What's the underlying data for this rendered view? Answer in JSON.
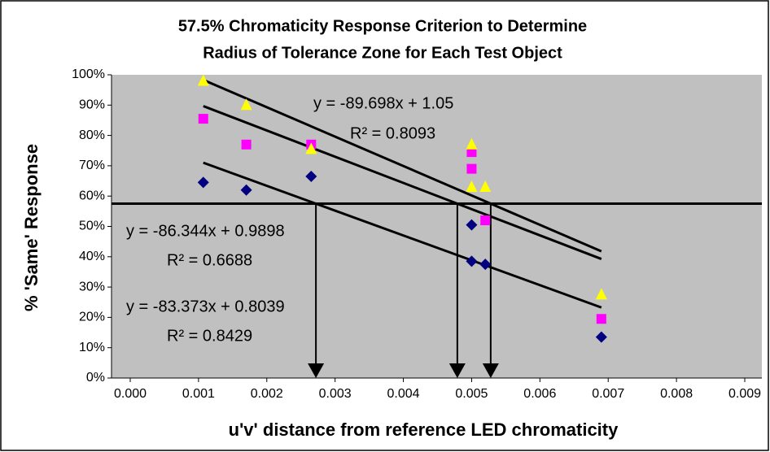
{
  "chart_data": {
    "type": "scatter",
    "title": "57.5% Chromaticity Response Criterion to Determine",
    "subtitle": "Radius of Tolerance Zone for Each Test Object",
    "x_label": "u'v' distance from reference LED chromaticity",
    "y_label": "% 'Same' Response",
    "xlim": [
      0,
      0.009
    ],
    "xticks": [
      {
        "value": 0,
        "label": "0.000"
      },
      {
        "value": 0.001,
        "label": "0.001"
      },
      {
        "value": 0.002,
        "label": "0.002"
      },
      {
        "value": 0.003,
        "label": "0.003"
      },
      {
        "value": 0.004,
        "label": "0.004"
      },
      {
        "value": 0.005,
        "label": "0.005"
      },
      {
        "value": 0.006,
        "label": "0.006"
      },
      {
        "value": 0.007,
        "label": "0.007"
      },
      {
        "value": 0.008,
        "label": "0.008"
      },
      {
        "value": 0.009,
        "label": "0.009"
      }
    ],
    "ylim": [
      0,
      100
    ],
    "yticks": [
      {
        "value": 0,
        "label": "0%"
      },
      {
        "value": 10,
        "label": "10%"
      },
      {
        "value": 20,
        "label": "20%"
      },
      {
        "value": 30,
        "label": "30%"
      },
      {
        "value": 40,
        "label": "40%"
      },
      {
        "value": 50,
        "label": "50%"
      },
      {
        "value": 60,
        "label": "60%"
      },
      {
        "value": 70,
        "label": "70%"
      },
      {
        "value": 80,
        "label": "80%"
      },
      {
        "value": 90,
        "label": "90%"
      },
      {
        "value": 100,
        "label": "100%"
      }
    ],
    "reference_line": 57.5,
    "series": [
      {
        "color": "#000080",
        "marker": "diamond",
        "x": [
          0.00107,
          0.0017,
          0.00265,
          0.005,
          0.005,
          0.0052,
          0.0069
        ],
        "values": [
          64.5,
          62,
          66.5,
          50.5,
          38.5,
          37.5,
          13.5
        ]
      },
      {
        "color": "#ff00ff",
        "marker": "square",
        "x": [
          0.00107,
          0.0017,
          0.00265,
          0.005,
          0.005,
          0.0052,
          0.0069
        ],
        "values": [
          85.5,
          77,
          77,
          74.5,
          69,
          52,
          19.5
        ]
      },
      {
        "color": "#ffff00",
        "marker": "triangle",
        "x": [
          0.00107,
          0.0017,
          0.00265,
          0.005,
          0.005,
          0.0052,
          0.0069
        ],
        "values": [
          98,
          90,
          75.5,
          77,
          63,
          63,
          27.5
        ]
      }
    ],
    "trendline_labels": [
      {
        "equation": "y = -89.698x + 1.05",
        "r2": "R² = 0.8093"
      },
      {
        "equation": "y = -86.344x + 0.9898",
        "r2": "R² = 0.6688"
      },
      {
        "equation": "y = -83.373x + 0.8039",
        "r2": "R² = 0.8429"
      }
    ]
  }
}
